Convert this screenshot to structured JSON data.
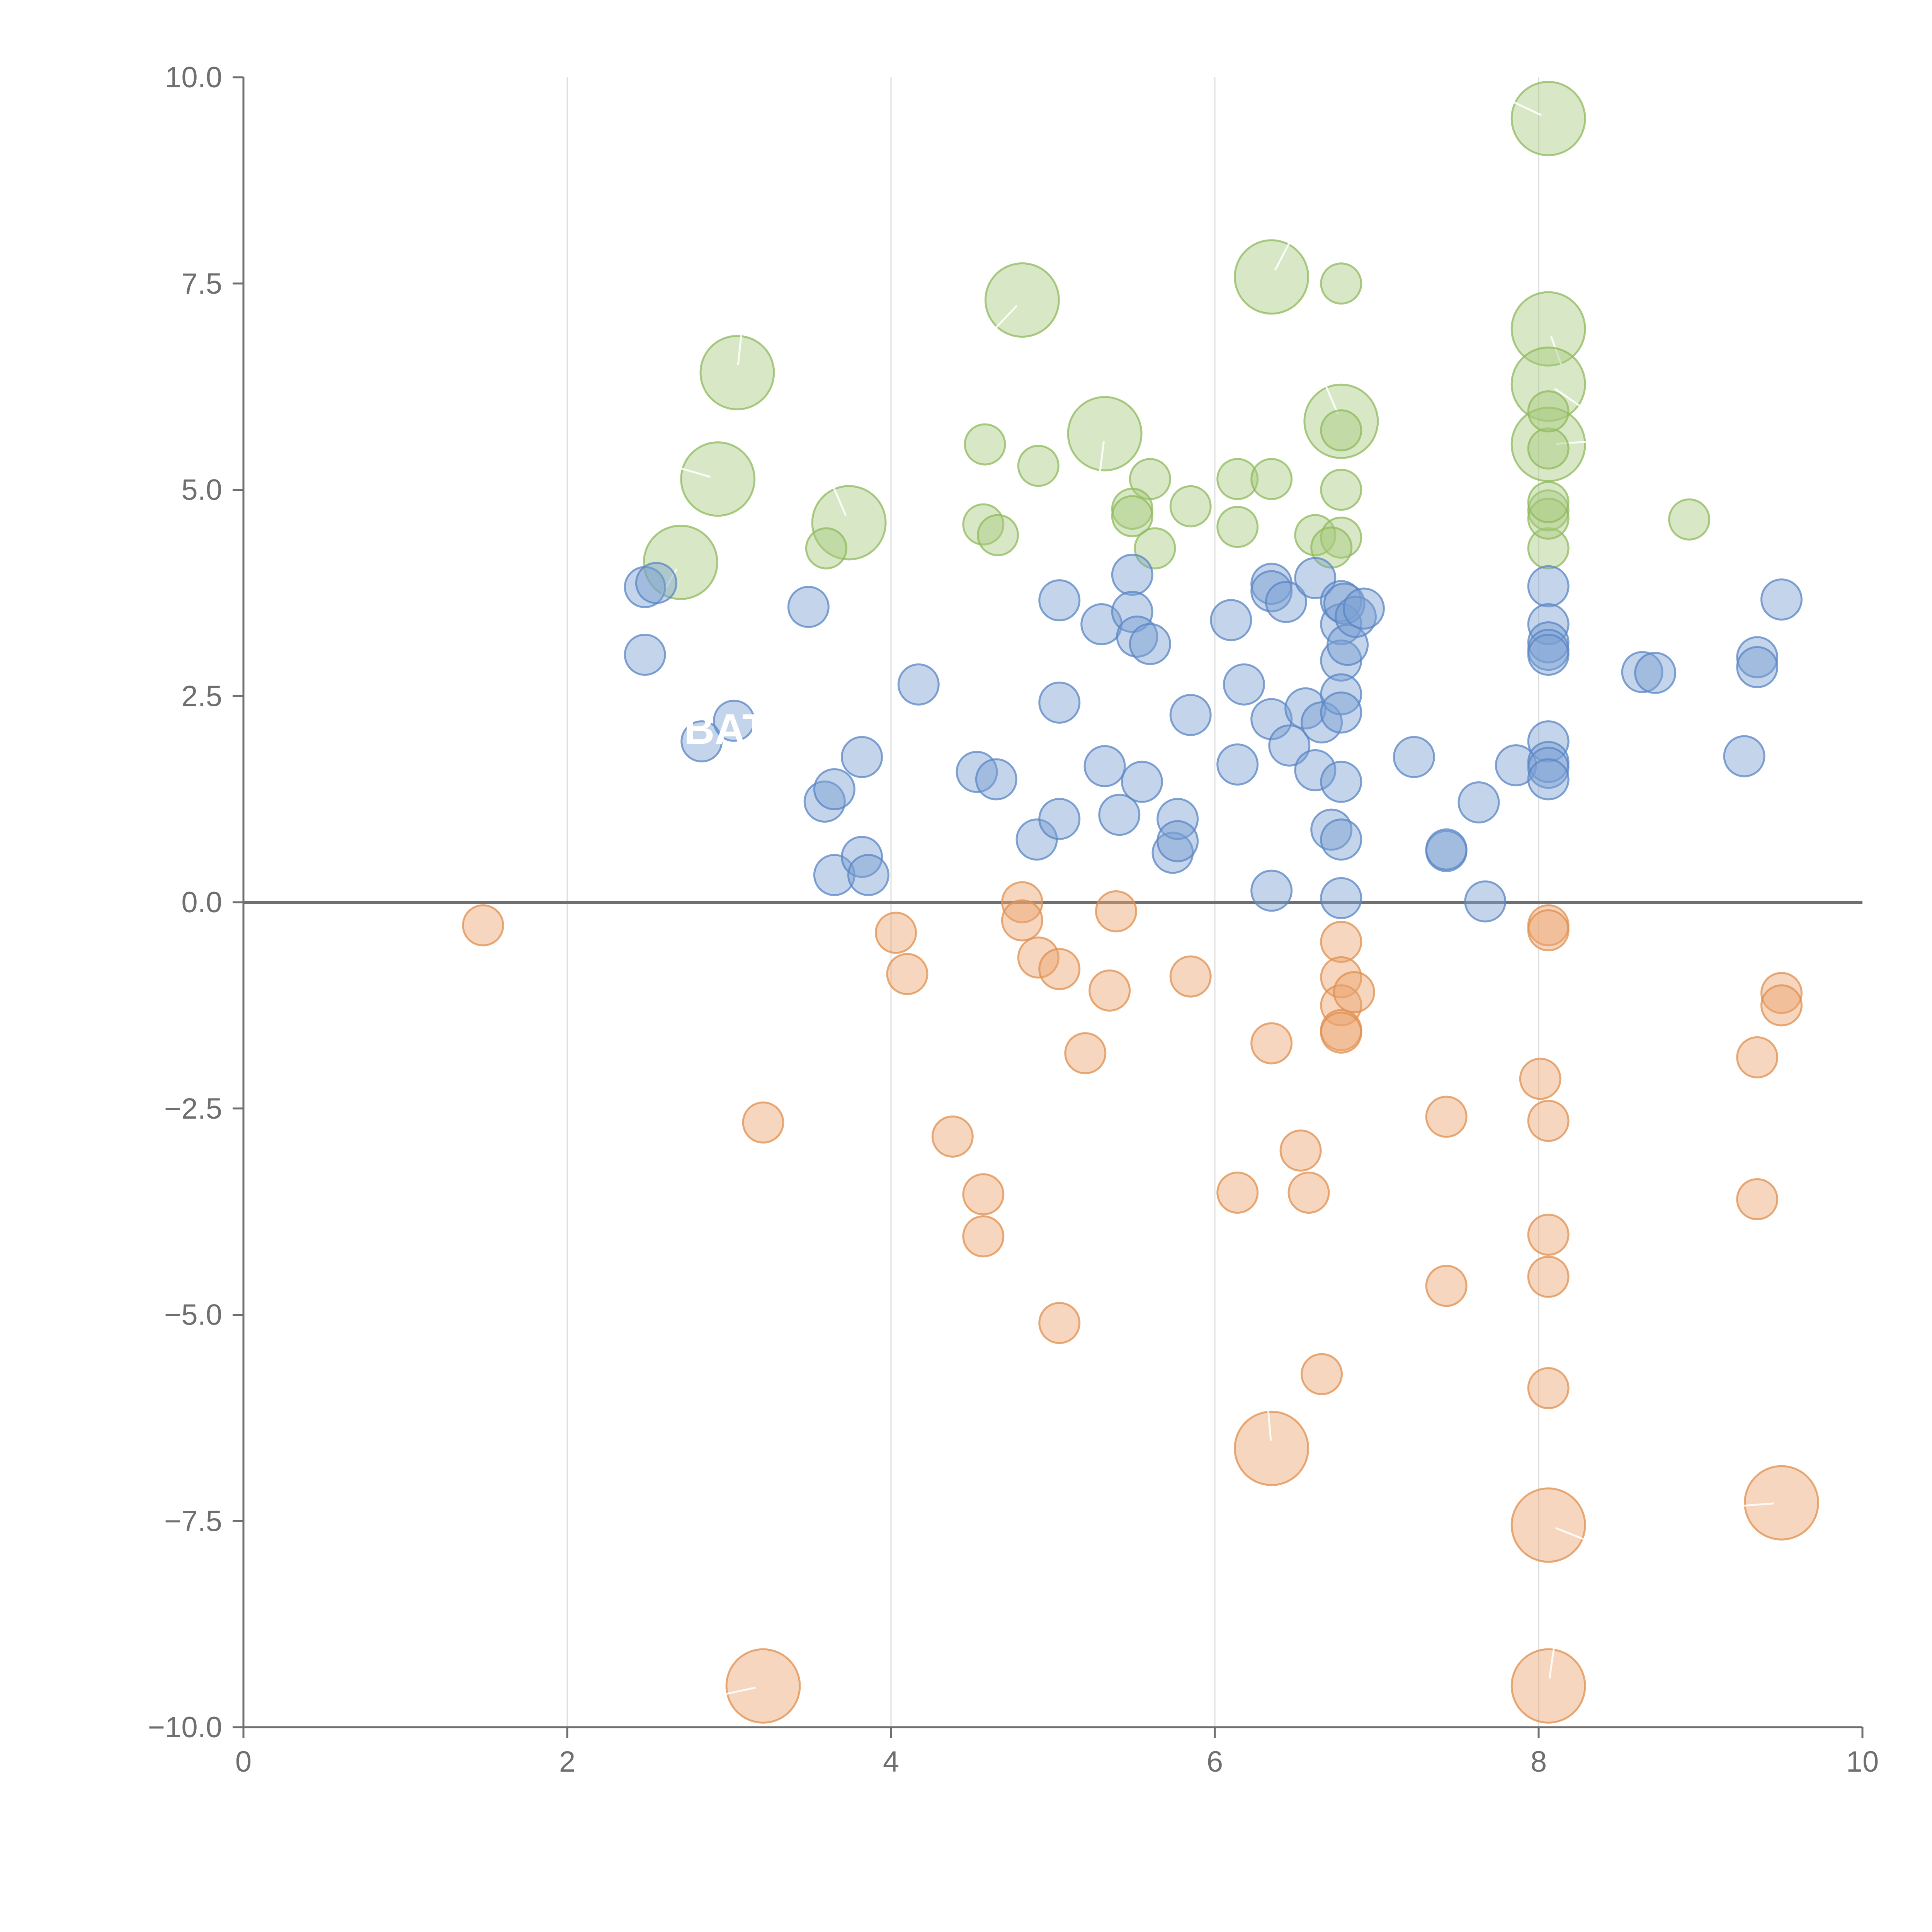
{
  "chart_data": {
    "type": "scatter",
    "title": "",
    "xlabel": "",
    "ylabel": "",
    "xlim": [
      0,
      10
    ],
    "ylim": [
      -10,
      10
    ],
    "x_ticks": [
      "0",
      "2",
      "4",
      "6",
      "8",
      "10"
    ],
    "y_ticks": [
      "10.0",
      "7.5",
      "5.0",
      "2.5",
      "0.0",
      "−2.5",
      "−5.0",
      "−7.5",
      "−10.0"
    ],
    "x_tick_values": [
      0,
      2,
      4,
      6,
      8,
      10
    ],
    "y_tick_values": [
      10,
      7.5,
      5,
      2.5,
      0,
      -2.5,
      -5,
      -7.5,
      -10
    ],
    "vertical_gridlines": [
      2,
      4,
      6,
      8
    ],
    "zero_line": 0,
    "callout_text": "BAT",
    "colors": {
      "green_fill": "#a9c97f",
      "green_stroke": "#8fba5c",
      "blue_fill": "#7b9fd2",
      "blue_stroke": "#5a85c4",
      "orange_fill": "#eaa46e",
      "orange_stroke": "#e08f4e",
      "axis": "#6f6f6f",
      "grid": "#dddddd"
    },
    "series": [
      {
        "name": "green",
        "points": [
          {
            "x": 8.06,
            "y": 9.5,
            "s": 3
          },
          {
            "x": 6.35,
            "y": 7.58,
            "s": 3
          },
          {
            "x": 4.81,
            "y": 7.3,
            "s": 3
          },
          {
            "x": 6.78,
            "y": 7.5,
            "s": 1
          },
          {
            "x": 8.06,
            "y": 6.95,
            "s": 3
          },
          {
            "x": 3.05,
            "y": 6.42,
            "s": 3
          },
          {
            "x": 8.06,
            "y": 6.28,
            "s": 3
          },
          {
            "x": 5.32,
            "y": 5.68,
            "s": 3
          },
          {
            "x": 6.78,
            "y": 5.83,
            "s": 3
          },
          {
            "x": 8.06,
            "y": 5.55,
            "s": 3
          },
          {
            "x": 2.93,
            "y": 5.13,
            "s": 3
          },
          {
            "x": 3.74,
            "y": 4.6,
            "s": 3
          },
          {
            "x": 2.7,
            "y": 4.12,
            "s": 3
          },
          {
            "x": 4.58,
            "y": 5.55,
            "s": 1
          },
          {
            "x": 4.91,
            "y": 5.29,
            "s": 1
          },
          {
            "x": 5.6,
            "y": 5.13,
            "s": 1
          },
          {
            "x": 6.14,
            "y": 5.13,
            "s": 1
          },
          {
            "x": 6.35,
            "y": 5.13,
            "s": 1
          },
          {
            "x": 6.78,
            "y": 5.0,
            "s": 1
          },
          {
            "x": 5.85,
            "y": 4.8,
            "s": 1
          },
          {
            "x": 5.49,
            "y": 4.77,
            "s": 1
          },
          {
            "x": 5.49,
            "y": 4.68,
            "s": 1
          },
          {
            "x": 4.57,
            "y": 4.58,
            "s": 1
          },
          {
            "x": 6.14,
            "y": 4.55,
            "s": 1
          },
          {
            "x": 4.66,
            "y": 4.45,
            "s": 1
          },
          {
            "x": 6.62,
            "y": 4.45,
            "s": 1
          },
          {
            "x": 6.78,
            "y": 4.42,
            "s": 1
          },
          {
            "x": 6.72,
            "y": 4.3,
            "s": 1
          },
          {
            "x": 3.6,
            "y": 4.29,
            "s": 1
          },
          {
            "x": 5.63,
            "y": 4.29,
            "s": 1
          },
          {
            "x": 8.06,
            "y": 4.29,
            "s": 1
          },
          {
            "x": 8.06,
            "y": 4.75,
            "s": 1
          },
          {
            "x": 8.06,
            "y": 4.65,
            "s": 1
          },
          {
            "x": 8.06,
            "y": 4.85,
            "s": 1
          },
          {
            "x": 8.06,
            "y": 5.5,
            "s": 1
          },
          {
            "x": 8.06,
            "y": 5.95,
            "s": 1
          },
          {
            "x": 6.78,
            "y": 5.72,
            "s": 1
          },
          {
            "x": 8.93,
            "y": 4.64,
            "s": 1
          }
        ]
      },
      {
        "name": "blue",
        "points": [
          {
            "x": 2.48,
            "y": 3.82,
            "s": 1
          },
          {
            "x": 2.55,
            "y": 3.87,
            "s": 1
          },
          {
            "x": 2.48,
            "y": 3.0,
            "s": 1
          },
          {
            "x": 3.49,
            "y": 3.58,
            "s": 1
          },
          {
            "x": 2.83,
            "y": 1.95,
            "s": 1
          },
          {
            "x": 3.03,
            "y": 2.2,
            "s": 1
          },
          {
            "x": 3.59,
            "y": 1.22,
            "s": 1
          },
          {
            "x": 3.65,
            "y": 1.37,
            "s": 1
          },
          {
            "x": 3.82,
            "y": 1.76,
            "s": 1
          },
          {
            "x": 3.65,
            "y": 0.33,
            "s": 1
          },
          {
            "x": 3.82,
            "y": 0.55,
            "s": 1
          },
          {
            "x": 3.86,
            "y": 0.33,
            "s": 1
          },
          {
            "x": 4.17,
            "y": 2.64,
            "s": 1
          },
          {
            "x": 4.53,
            "y": 1.58,
            "s": 1
          },
          {
            "x": 4.65,
            "y": 1.49,
            "s": 1
          },
          {
            "x": 4.9,
            "y": 0.76,
            "s": 1
          },
          {
            "x": 5.04,
            "y": 1.01,
            "s": 1
          },
          {
            "x": 5.04,
            "y": 2.42,
            "s": 1
          },
          {
            "x": 5.04,
            "y": 3.66,
            "s": 1
          },
          {
            "x": 5.3,
            "y": 3.37,
            "s": 1
          },
          {
            "x": 5.32,
            "y": 1.65,
            "s": 1
          },
          {
            "x": 5.41,
            "y": 1.06,
            "s": 1
          },
          {
            "x": 5.49,
            "y": 3.97,
            "s": 1
          },
          {
            "x": 5.49,
            "y": 3.52,
            "s": 1
          },
          {
            "x": 5.52,
            "y": 3.22,
            "s": 1
          },
          {
            "x": 5.55,
            "y": 1.46,
            "s": 1
          },
          {
            "x": 5.6,
            "y": 3.13,
            "s": 1
          },
          {
            "x": 5.74,
            "y": 0.6,
            "s": 1
          },
          {
            "x": 5.77,
            "y": 1.01,
            "s": 1
          },
          {
            "x": 5.77,
            "y": 0.74,
            "s": 1
          },
          {
            "x": 5.85,
            "y": 2.27,
            "s": 1
          },
          {
            "x": 6.1,
            "y": 3.42,
            "s": 1
          },
          {
            "x": 6.14,
            "y": 1.67,
            "s": 1
          },
          {
            "x": 6.18,
            "y": 2.64,
            "s": 1
          },
          {
            "x": 6.35,
            "y": 3.86,
            "s": 1
          },
          {
            "x": 6.35,
            "y": 3.77,
            "s": 1
          },
          {
            "x": 6.35,
            "y": 2.22,
            "s": 1
          },
          {
            "x": 6.35,
            "y": 0.14,
            "s": 1
          },
          {
            "x": 6.44,
            "y": 3.64,
            "s": 1
          },
          {
            "x": 6.46,
            "y": 1.9,
            "s": 1
          },
          {
            "x": 6.56,
            "y": 2.35,
            "s": 1
          },
          {
            "x": 6.62,
            "y": 3.93,
            "s": 1
          },
          {
            "x": 6.62,
            "y": 1.6,
            "s": 1
          },
          {
            "x": 6.66,
            "y": 2.18,
            "s": 1
          },
          {
            "x": 6.72,
            "y": 0.88,
            "s": 1
          },
          {
            "x": 6.78,
            "y": 3.65,
            "s": 1
          },
          {
            "x": 6.78,
            "y": 3.37,
            "s": 1
          },
          {
            "x": 6.78,
            "y": 2.93,
            "s": 1
          },
          {
            "x": 6.78,
            "y": 2.52,
            "s": 1
          },
          {
            "x": 6.78,
            "y": 2.3,
            "s": 1
          },
          {
            "x": 6.78,
            "y": 1.46,
            "s": 1
          },
          {
            "x": 6.78,
            "y": 0.76,
            "s": 1
          },
          {
            "x": 6.78,
            "y": 0.05,
            "s": 1
          },
          {
            "x": 6.8,
            "y": 3.62,
            "s": 1
          },
          {
            "x": 6.82,
            "y": 3.12,
            "s": 1
          },
          {
            "x": 6.87,
            "y": 3.46,
            "s": 1
          },
          {
            "x": 6.92,
            "y": 3.56,
            "s": 1
          },
          {
            "x": 7.23,
            "y": 1.76,
            "s": 1
          },
          {
            "x": 7.43,
            "y": 0.62,
            "s": 1
          },
          {
            "x": 7.43,
            "y": 0.64,
            "s": 1
          },
          {
            "x": 7.63,
            "y": 1.21,
            "s": 1
          },
          {
            "x": 7.67,
            "y": 0.01,
            "s": 1
          },
          {
            "x": 7.86,
            "y": 1.66,
            "s": 1
          },
          {
            "x": 8.06,
            "y": 3.83,
            "s": 1
          },
          {
            "x": 8.06,
            "y": 3.37,
            "s": 1
          },
          {
            "x": 8.06,
            "y": 3.15,
            "s": 1
          },
          {
            "x": 8.06,
            "y": 3.06,
            "s": 1
          },
          {
            "x": 8.06,
            "y": 3.0,
            "s": 1
          },
          {
            "x": 8.06,
            "y": 1.95,
            "s": 1
          },
          {
            "x": 8.06,
            "y": 1.7,
            "s": 1
          },
          {
            "x": 8.06,
            "y": 1.63,
            "s": 1
          },
          {
            "x": 8.06,
            "y": 1.49,
            "s": 1
          },
          {
            "x": 8.64,
            "y": 2.79,
            "s": 1
          },
          {
            "x": 8.72,
            "y": 2.78,
            "s": 1
          },
          {
            "x": 9.27,
            "y": 1.77,
            "s": 1
          },
          {
            "x": 9.35,
            "y": 2.97,
            "s": 1
          },
          {
            "x": 9.35,
            "y": 2.85,
            "s": 1
          },
          {
            "x": 9.5,
            "y": 3.67,
            "s": 1
          }
        ]
      },
      {
        "name": "orange",
        "points": [
          {
            "x": 1.48,
            "y": -0.28,
            "s": 1
          },
          {
            "x": 3.21,
            "y": -2.67,
            "s": 1
          },
          {
            "x": 3.21,
            "y": -9.5,
            "s": 3
          },
          {
            "x": 4.03,
            "y": -0.37,
            "s": 1
          },
          {
            "x": 4.1,
            "y": -0.87,
            "s": 1
          },
          {
            "x": 4.38,
            "y": -2.84,
            "s": 1
          },
          {
            "x": 4.57,
            "y": -3.54,
            "s": 1
          },
          {
            "x": 4.57,
            "y": -4.05,
            "s": 1
          },
          {
            "x": 4.81,
            "y": 0.0,
            "s": 1
          },
          {
            "x": 4.81,
            "y": -0.22,
            "s": 1
          },
          {
            "x": 4.91,
            "y": -0.67,
            "s": 1
          },
          {
            "x": 5.04,
            "y": -0.81,
            "s": 1
          },
          {
            "x": 5.04,
            "y": -5.1,
            "s": 1
          },
          {
            "x": 5.2,
            "y": -1.83,
            "s": 1
          },
          {
            "x": 5.35,
            "y": -1.07,
            "s": 1
          },
          {
            "x": 5.39,
            "y": -0.11,
            "s": 1
          },
          {
            "x": 5.85,
            "y": -0.9,
            "s": 1
          },
          {
            "x": 6.14,
            "y": -3.52,
            "s": 1
          },
          {
            "x": 6.35,
            "y": -1.71,
            "s": 1
          },
          {
            "x": 6.35,
            "y": -6.62,
            "s": 3
          },
          {
            "x": 6.53,
            "y": -3.01,
            "s": 1
          },
          {
            "x": 6.58,
            "y": -3.52,
            "s": 1
          },
          {
            "x": 6.66,
            "y": -5.72,
            "s": 1
          },
          {
            "x": 6.78,
            "y": -0.48,
            "s": 1
          },
          {
            "x": 6.78,
            "y": -0.91,
            "s": 1
          },
          {
            "x": 6.78,
            "y": -1.25,
            "s": 1
          },
          {
            "x": 6.78,
            "y": -1.55,
            "s": 1
          },
          {
            "x": 6.78,
            "y": -1.58,
            "s": 1
          },
          {
            "x": 6.86,
            "y": -1.09,
            "s": 1
          },
          {
            "x": 7.43,
            "y": -2.6,
            "s": 1
          },
          {
            "x": 7.43,
            "y": -4.65,
            "s": 1
          },
          {
            "x": 8.01,
            "y": -2.14,
            "s": 1
          },
          {
            "x": 8.06,
            "y": -0.28,
            "s": 1
          },
          {
            "x": 8.06,
            "y": -0.34,
            "s": 1
          },
          {
            "x": 8.06,
            "y": -2.65,
            "s": 1
          },
          {
            "x": 8.06,
            "y": -4.03,
            "s": 1
          },
          {
            "x": 8.06,
            "y": -4.54,
            "s": 1
          },
          {
            "x": 8.06,
            "y": -5.89,
            "s": 1
          },
          {
            "x": 8.06,
            "y": -7.55,
            "s": 3
          },
          {
            "x": 8.06,
            "y": -9.5,
            "s": 3
          },
          {
            "x": 9.35,
            "y": -1.88,
            "s": 1
          },
          {
            "x": 9.35,
            "y": -3.6,
            "s": 1
          },
          {
            "x": 9.5,
            "y": -1.1,
            "s": 1
          },
          {
            "x": 9.5,
            "y": -1.25,
            "s": 1
          },
          {
            "x": 9.5,
            "y": -7.28,
            "s": 3
          }
        ]
      }
    ]
  }
}
